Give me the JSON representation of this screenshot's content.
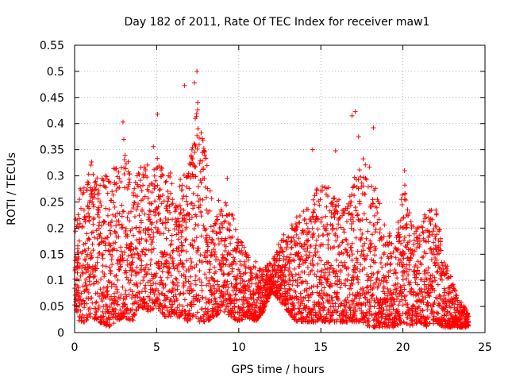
{
  "chart_data": {
    "type": "scatter",
    "title": "Day 182 of 2011, Rate Of TEC Index for receiver maw1",
    "xlabel": "GPS time / hours",
    "ylabel": "ROTI / TECUs",
    "xlim": [
      0,
      25
    ],
    "ylim": [
      0,
      0.55
    ],
    "xticks": [
      "0",
      "5",
      "10",
      "15",
      "20",
      "25"
    ],
    "yticks": [
      "0",
      "0.05",
      "0.1",
      "0.15",
      "0.2",
      "0.25",
      "0.3",
      "0.35",
      "0.4",
      "0.45",
      "0.5",
      "0.55"
    ],
    "grid": true,
    "marker": "+",
    "color": "#ff0000",
    "envelope": {
      "x": [
        0,
        0.3,
        0.7,
        1.0,
        1.5,
        2.0,
        2.5,
        3.0,
        3.5,
        4.0,
        4.5,
        5.0,
        5.5,
        6.0,
        6.5,
        7.0,
        7.5,
        8.0,
        8.5,
        9.0,
        9.5,
        10.0,
        10.5,
        11.0,
        11.5,
        12.0,
        12.5,
        13.0,
        13.5,
        14.0,
        14.5,
        15.0,
        15.5,
        16.0,
        16.5,
        17.0,
        17.5,
        18.0,
        18.5,
        19.0,
        19.5,
        20.0,
        20.5,
        21.0,
        21.5,
        22.0,
        22.5,
        23.0,
        23.5,
        24.0
      ],
      "y_low": [
        0.05,
        0.02,
        0.02,
        0.03,
        0.02,
        0.01,
        0.02,
        0.03,
        0.02,
        0.05,
        0.04,
        0.05,
        0.03,
        0.03,
        0.03,
        0.02,
        0.02,
        0.02,
        0.03,
        0.04,
        0.03,
        0.02,
        0.03,
        0.02,
        0.04,
        0.08,
        0.06,
        0.04,
        0.02,
        0.02,
        0.02,
        0.02,
        0.02,
        0.02,
        0.02,
        0.02,
        0.02,
        0.01,
        0.01,
        0.01,
        0.01,
        0.02,
        0.01,
        0.02,
        0.01,
        0.02,
        0.01,
        0.01,
        0.01,
        0.01
      ],
      "y_high": [
        0.2,
        0.28,
        0.28,
        0.33,
        0.3,
        0.3,
        0.32,
        0.36,
        0.3,
        0.33,
        0.32,
        0.34,
        0.32,
        0.3,
        0.3,
        0.32,
        0.45,
        0.35,
        0.22,
        0.28,
        0.25,
        0.18,
        0.16,
        0.14,
        0.12,
        0.14,
        0.18,
        0.2,
        0.22,
        0.24,
        0.26,
        0.29,
        0.28,
        0.26,
        0.25,
        0.3,
        0.35,
        0.32,
        0.26,
        0.2,
        0.18,
        0.3,
        0.22,
        0.2,
        0.24,
        0.24,
        0.15,
        0.1,
        0.06,
        0.04
      ]
    },
    "outliers": [
      {
        "x": 2.95,
        "y": 0.403
      },
      {
        "x": 5.05,
        "y": 0.418
      },
      {
        "x": 6.7,
        "y": 0.473
      },
      {
        "x": 7.3,
        "y": 0.478
      },
      {
        "x": 7.45,
        "y": 0.5
      },
      {
        "x": 7.5,
        "y": 0.44
      },
      {
        "x": 7.35,
        "y": 0.41
      },
      {
        "x": 16.9,
        "y": 0.415
      },
      {
        "x": 17.1,
        "y": 0.423
      },
      {
        "x": 18.2,
        "y": 0.392
      },
      {
        "x": 17.3,
        "y": 0.375
      },
      {
        "x": 14.5,
        "y": 0.35
      },
      {
        "x": 15.9,
        "y": 0.348
      },
      {
        "x": 4.8,
        "y": 0.356
      },
      {
        "x": 3.0,
        "y": 0.37
      },
      {
        "x": 9.3,
        "y": 0.295
      },
      {
        "x": 20.1,
        "y": 0.31
      }
    ]
  }
}
